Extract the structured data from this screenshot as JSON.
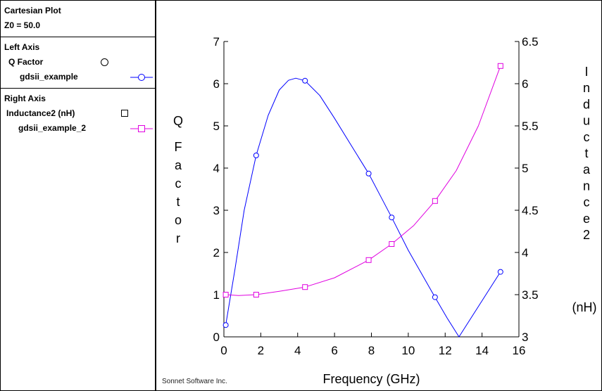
{
  "sidebar": {
    "plot_title": "Cartesian Plot",
    "z0": "Z0 = 50.0",
    "left_heading": "Left Axis",
    "left_measure": "Q Factor",
    "left_series": "gdsii_example",
    "right_heading": "Right Axis",
    "right_measure": "Inductance2 (nH)",
    "right_series": "gdsii_example_2"
  },
  "credit": "Sonnet Software Inc.",
  "colors": {
    "series1": "#0000ff",
    "series2": "#e000e0",
    "axis": "#000000"
  },
  "chart_data": {
    "type": "line",
    "xlabel": "Frequency (GHz)",
    "ylabel_left": "Q Factor",
    "ylabel_right": "Inductance2",
    "ylabel_right_unit": "(nH)",
    "xlim": [
      0,
      16
    ],
    "ylim_left": [
      0,
      7
    ],
    "ylim_right": [
      3,
      6.5
    ],
    "x_ticks": [
      0,
      2,
      4,
      6,
      8,
      10,
      12,
      14,
      16
    ],
    "y_left_ticks": [
      0,
      1,
      2,
      3,
      4,
      5,
      6,
      7
    ],
    "y_right_ticks": [
      3,
      3.5,
      4,
      4.5,
      5,
      5.5,
      6,
      6.5
    ],
    "y_right_tick_labels": [
      "3",
      "3.5",
      "4",
      "4.5",
      "5",
      "5.5",
      "6",
      "6.5"
    ],
    "grid": false,
    "series": [
      {
        "name": "gdsii_example",
        "axis": "left",
        "marker": "circle",
        "markers": [
          [
            0.1,
            0.28
          ],
          [
            1.75,
            4.3
          ],
          [
            4.4,
            6.07
          ],
          [
            7.85,
            3.87
          ],
          [
            9.1,
            2.83
          ],
          [
            11.45,
            0.94
          ],
          [
            15.0,
            1.54
          ]
        ],
        "curve": [
          [
            0.1,
            0.28
          ],
          [
            0.6,
            1.6
          ],
          [
            1.1,
            3.0
          ],
          [
            1.75,
            4.3
          ],
          [
            2.4,
            5.25
          ],
          [
            3.0,
            5.85
          ],
          [
            3.5,
            6.08
          ],
          [
            3.9,
            6.13
          ],
          [
            4.4,
            6.07
          ],
          [
            5.2,
            5.72
          ],
          [
            6.0,
            5.18
          ],
          [
            7.0,
            4.47
          ],
          [
            7.85,
            3.87
          ],
          [
            8.5,
            3.33
          ],
          [
            9.1,
            2.83
          ],
          [
            10.0,
            2.05
          ],
          [
            11.45,
            0.94
          ],
          [
            12.1,
            0.45
          ],
          [
            12.75,
            0.0
          ],
          [
            15.0,
            1.54
          ]
        ]
      },
      {
        "name": "gdsii_example_2",
        "axis": "right",
        "marker": "square",
        "markers": [
          [
            0.1,
            3.5
          ],
          [
            1.75,
            3.5
          ],
          [
            4.4,
            3.59
          ],
          [
            7.85,
            3.91
          ],
          [
            9.1,
            4.1
          ],
          [
            11.45,
            4.61
          ],
          [
            15.0,
            6.21
          ]
        ],
        "curve": [
          [
            0.1,
            3.5
          ],
          [
            0.8,
            3.49
          ],
          [
            1.75,
            3.5
          ],
          [
            3.0,
            3.54
          ],
          [
            4.4,
            3.59
          ],
          [
            6.0,
            3.7
          ],
          [
            7.85,
            3.91
          ],
          [
            9.1,
            4.1
          ],
          [
            10.3,
            4.32
          ],
          [
            11.45,
            4.61
          ],
          [
            12.6,
            4.97
          ],
          [
            13.8,
            5.5
          ],
          [
            15.0,
            6.21
          ]
        ]
      }
    ]
  }
}
